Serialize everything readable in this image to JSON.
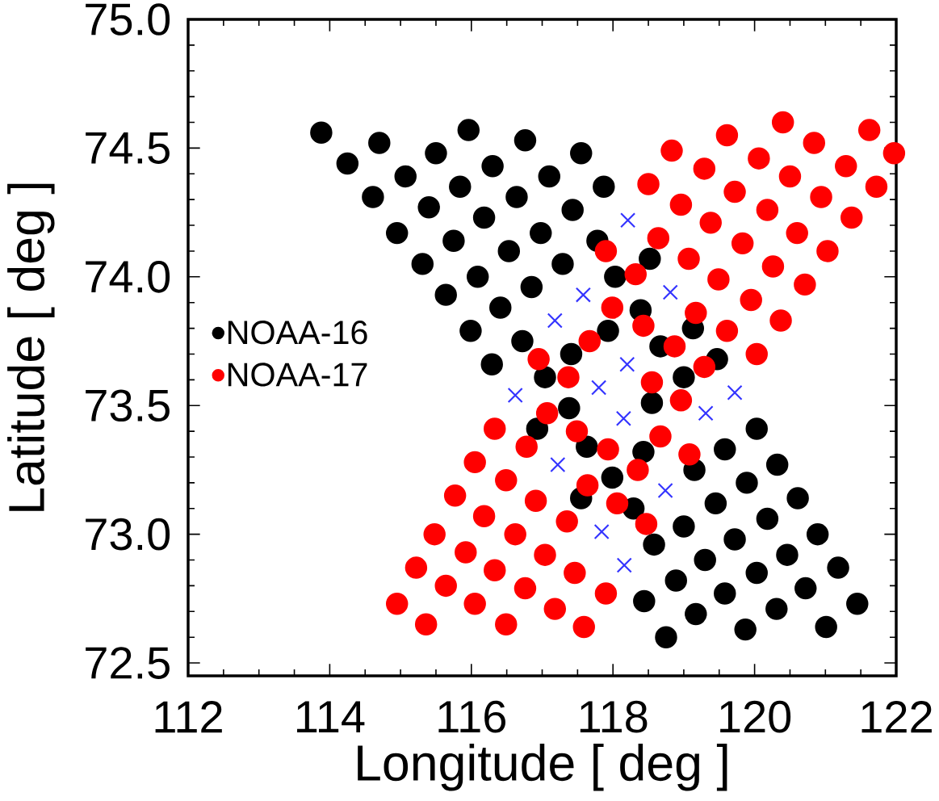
{
  "chart_data": {
    "type": "scatter",
    "xlabel": "Longitude [ deg ]",
    "ylabel": "Latitude [ deg ]",
    "xlim": [
      112,
      122
    ],
    "ylim": [
      72.45,
      75.0
    ],
    "xticks": [
      112,
      114,
      116,
      118,
      120,
      122
    ],
    "yticks": [
      {
        "value": 72.5,
        "label": "72.5"
      },
      {
        "value": 73.0,
        "label": "73.0"
      },
      {
        "value": 73.5,
        "label": "73.5"
      },
      {
        "value": 74.0,
        "label": "74.0"
      },
      {
        "value": 74.5,
        "label": "74.5"
      },
      {
        "value": 75.0,
        "label": "75.0"
      }
    ],
    "marker": "circle",
    "legend": "left",
    "series": [
      {
        "name": "NOAA-16",
        "color": "#000000",
        "x": [
          113.88,
          114.7,
          115.5,
          115.96,
          116.76,
          117.55,
          114.25,
          115.07,
          115.84,
          116.3,
          117.1,
          117.87,
          114.61,
          115.4,
          116.18,
          116.64,
          117.43,
          114.95,
          115.75,
          116.53,
          116.98,
          117.78,
          115.31,
          116.09,
          116.85,
          117.29,
          118.03,
          118.52,
          115.64,
          116.41,
          117.93,
          118.39,
          115.99,
          116.72,
          117.41,
          118.67,
          119.13,
          116.29,
          117.04,
          119.0,
          119.47,
          116.93,
          117.38,
          118.55,
          117.63,
          118.43,
          119.15,
          119.58,
          120.03,
          117.99,
          117.55,
          118.29,
          120.32,
          119.89,
          120.61,
          119.45,
          120.18,
          120.89,
          119.0,
          119.72,
          120.46,
          121.18,
          118.58,
          119.3,
          120.03,
          120.72,
          121.45,
          118.89,
          119.58,
          120.31,
          121.01,
          118.44,
          119.17,
          119.87,
          118.75
        ],
        "values": [
          74.56,
          74.52,
          74.48,
          74.57,
          74.53,
          74.48,
          74.44,
          74.39,
          74.35,
          74.43,
          74.39,
          74.35,
          74.31,
          74.27,
          74.23,
          74.31,
          74.26,
          74.17,
          74.14,
          74.1,
          74.17,
          74.14,
          74.05,
          74.0,
          73.96,
          74.05,
          74.0,
          74.07,
          73.93,
          73.88,
          73.79,
          73.87,
          73.79,
          73.75,
          73.7,
          73.73,
          73.8,
          73.66,
          73.61,
          73.61,
          73.68,
          73.41,
          73.49,
          73.51,
          73.34,
          73.32,
          73.25,
          73.33,
          73.41,
          73.22,
          73.14,
          73.1,
          73.27,
          73.2,
          73.14,
          73.12,
          73.06,
          73.0,
          73.03,
          72.98,
          72.92,
          72.87,
          72.96,
          72.9,
          72.85,
          72.79,
          72.73,
          72.82,
          72.77,
          72.71,
          72.64,
          72.74,
          72.69,
          72.63,
          72.6
        ]
      },
      {
        "name": "NOAA-17",
        "color": "#ff0000",
        "x": [
          120.4,
          121.62,
          119.61,
          120.84,
          118.83,
          120.06,
          121.29,
          119.29,
          120.5,
          121.72,
          118.5,
          119.72,
          120.94,
          118.96,
          120.18,
          121.37,
          119.38,
          120.6,
          118.64,
          119.83,
          121.03,
          117.9,
          119.07,
          120.26,
          119.49,
          120.71,
          118.32,
          119.95,
          117.99,
          119.17,
          120.37,
          118.43,
          119.61,
          118.87,
          120.03,
          119.29,
          121.97,
          117.67,
          116.95,
          117.37,
          118.55,
          118.96,
          117.07,
          116.33,
          117.49,
          118.67,
          116.78,
          117.93,
          119.08,
          116.05,
          118.35,
          116.49,
          117.64,
          115.77,
          116.91,
          118.06,
          116.18,
          117.35,
          118.47,
          115.48,
          116.62,
          115.92,
          117.04,
          115.22,
          116.33,
          117.46,
          115.64,
          116.76,
          117.9,
          114.95,
          116.05,
          117.18,
          115.36,
          116.49,
          117.59
        ],
        "values": [
          74.6,
          74.57,
          74.55,
          74.52,
          74.49,
          74.46,
          74.43,
          74.42,
          74.39,
          74.35,
          74.36,
          74.33,
          74.31,
          74.28,
          74.26,
          74.23,
          74.21,
          74.17,
          74.15,
          74.13,
          74.1,
          74.1,
          74.07,
          74.04,
          73.99,
          73.97,
          74.01,
          73.91,
          73.88,
          73.86,
          73.83,
          73.81,
          73.79,
          73.73,
          73.7,
          73.65,
          74.48,
          73.75,
          73.68,
          73.61,
          73.59,
          73.52,
          73.47,
          73.41,
          73.4,
          73.38,
          73.34,
          73.33,
          73.31,
          73.28,
          73.25,
          73.21,
          73.19,
          73.15,
          73.13,
          73.12,
          73.07,
          73.05,
          73.04,
          73.0,
          73.0,
          72.93,
          72.92,
          72.87,
          72.86,
          72.85,
          72.8,
          72.79,
          72.77,
          72.73,
          72.73,
          72.71,
          72.65,
          72.65,
          72.64
        ]
      },
      {
        "color": "#3333ff",
        "marker": "cross",
        "x": [
          118.21,
          117.58,
          118.81,
          117.18,
          118.2,
          117.8,
          116.62,
          119.72,
          119.31,
          118.15,
          117.22,
          118.74,
          117.84,
          118.16
        ],
        "values": [
          74.22,
          73.93,
          73.94,
          73.83,
          73.66,
          73.57,
          73.54,
          73.55,
          73.47,
          73.45,
          73.27,
          73.17,
          73.01,
          72.88
        ]
      }
    ]
  }
}
